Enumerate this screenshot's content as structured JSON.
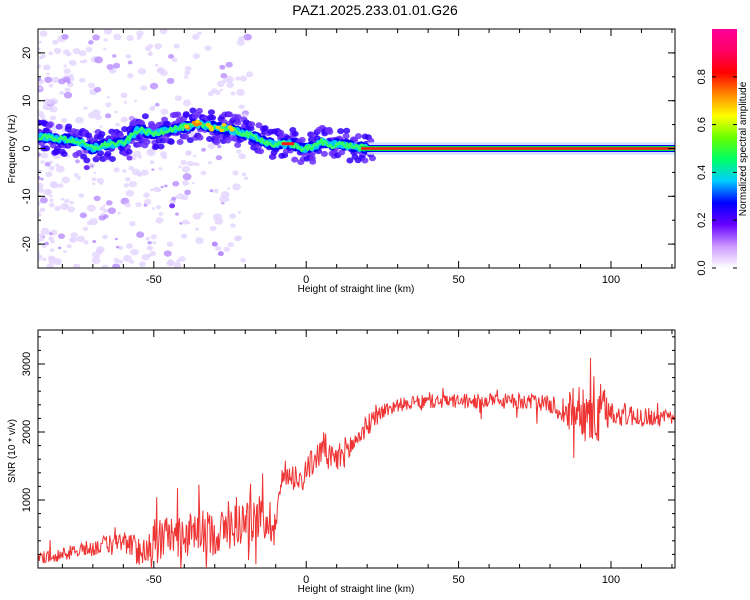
{
  "title": "PAZ1.2025.233.01.01.G26",
  "chart_data": [
    {
      "type": "heatmap",
      "xlabel": "Height of straight line (km)",
      "ylabel": "Frequency (Hz)",
      "xlim": [
        -88,
        121
      ],
      "ylim": [
        -25,
        25
      ],
      "xticks": [
        -50,
        0,
        50,
        100
      ],
      "yticks": [
        20,
        10,
        0,
        -10,
        -20
      ],
      "colorbar": {
        "label": "Normalized spectral amplitude",
        "range": [
          0,
          1
        ],
        "ticks": [
          0.0,
          0.2,
          0.4,
          0.6,
          0.8
        ],
        "colors": [
          "#ffffff",
          "#cc99ff",
          "#6600ff",
          "#0000ff",
          "#00ccff",
          "#00ff66",
          "#66ff00",
          "#ffff00",
          "#ff8800",
          "#ff0000",
          "#ff0066",
          "#ff0099"
        ]
      },
      "ridge": {
        "x": [
          -88,
          -80,
          -75,
          -70,
          -65,
          -60,
          -55,
          -50,
          -45,
          -40,
          -35,
          -30,
          -25,
          -20,
          -15,
          -12,
          -10,
          -8,
          -5,
          -2,
          0,
          3,
          5,
          8,
          10,
          15,
          20,
          30,
          50,
          80,
          100,
          121
        ],
        "y": [
          2.5,
          2,
          1.5,
          0,
          1,
          1,
          4,
          3,
          4,
          4.5,
          5,
          4.5,
          4,
          3,
          2,
          1,
          0.5,
          1,
          1,
          0,
          0,
          0.5,
          1.5,
          0.5,
          1,
          0.5,
          0,
          0,
          0,
          0,
          0,
          0
        ]
      }
    },
    {
      "type": "line",
      "xlabel": "Height of straight line (km)",
      "ylabel": "SNR (10 * v/v)",
      "xlim": [
        -88,
        121
      ],
      "ylim": [
        0,
        3500
      ],
      "xticks": [
        -50,
        0,
        50,
        100
      ],
      "yticks": [
        1000,
        2000,
        3000
      ],
      "color": "#ee3333",
      "trend": {
        "x": [
          -88,
          -80,
          -70,
          -65,
          -60,
          -55,
          -50,
          -45,
          -40,
          -35,
          -30,
          -25,
          -20,
          -15,
          -10,
          -8,
          -5,
          -2,
          0,
          3,
          6,
          8,
          10,
          15,
          20,
          25,
          30,
          40,
          50,
          60,
          70,
          75,
          80,
          85,
          90,
          95,
          100,
          105,
          110,
          115,
          121
        ],
        "y": [
          150,
          200,
          300,
          350,
          400,
          250,
          350,
          500,
          450,
          550,
          500,
          600,
          700,
          750,
          650,
          1300,
          1400,
          1300,
          1450,
          1600,
          1800,
          1550,
          1600,
          1800,
          2100,
          2300,
          2400,
          2450,
          2450,
          2450,
          2450,
          2450,
          2400,
          2300,
          2350,
          2250,
          2300,
          2250,
          2250,
          2200,
          2200
        ]
      },
      "noise": {
        "x": [
          -88,
          -60,
          -50,
          -10,
          -8,
          0,
          10,
          20,
          30,
          80,
          85,
          90,
          95,
          100,
          121
        ],
        "y": [
          80,
          150,
          300,
          350,
          150,
          200,
          250,
          150,
          100,
          120,
          250,
          400,
          600,
          200,
          100
        ]
      }
    }
  ]
}
